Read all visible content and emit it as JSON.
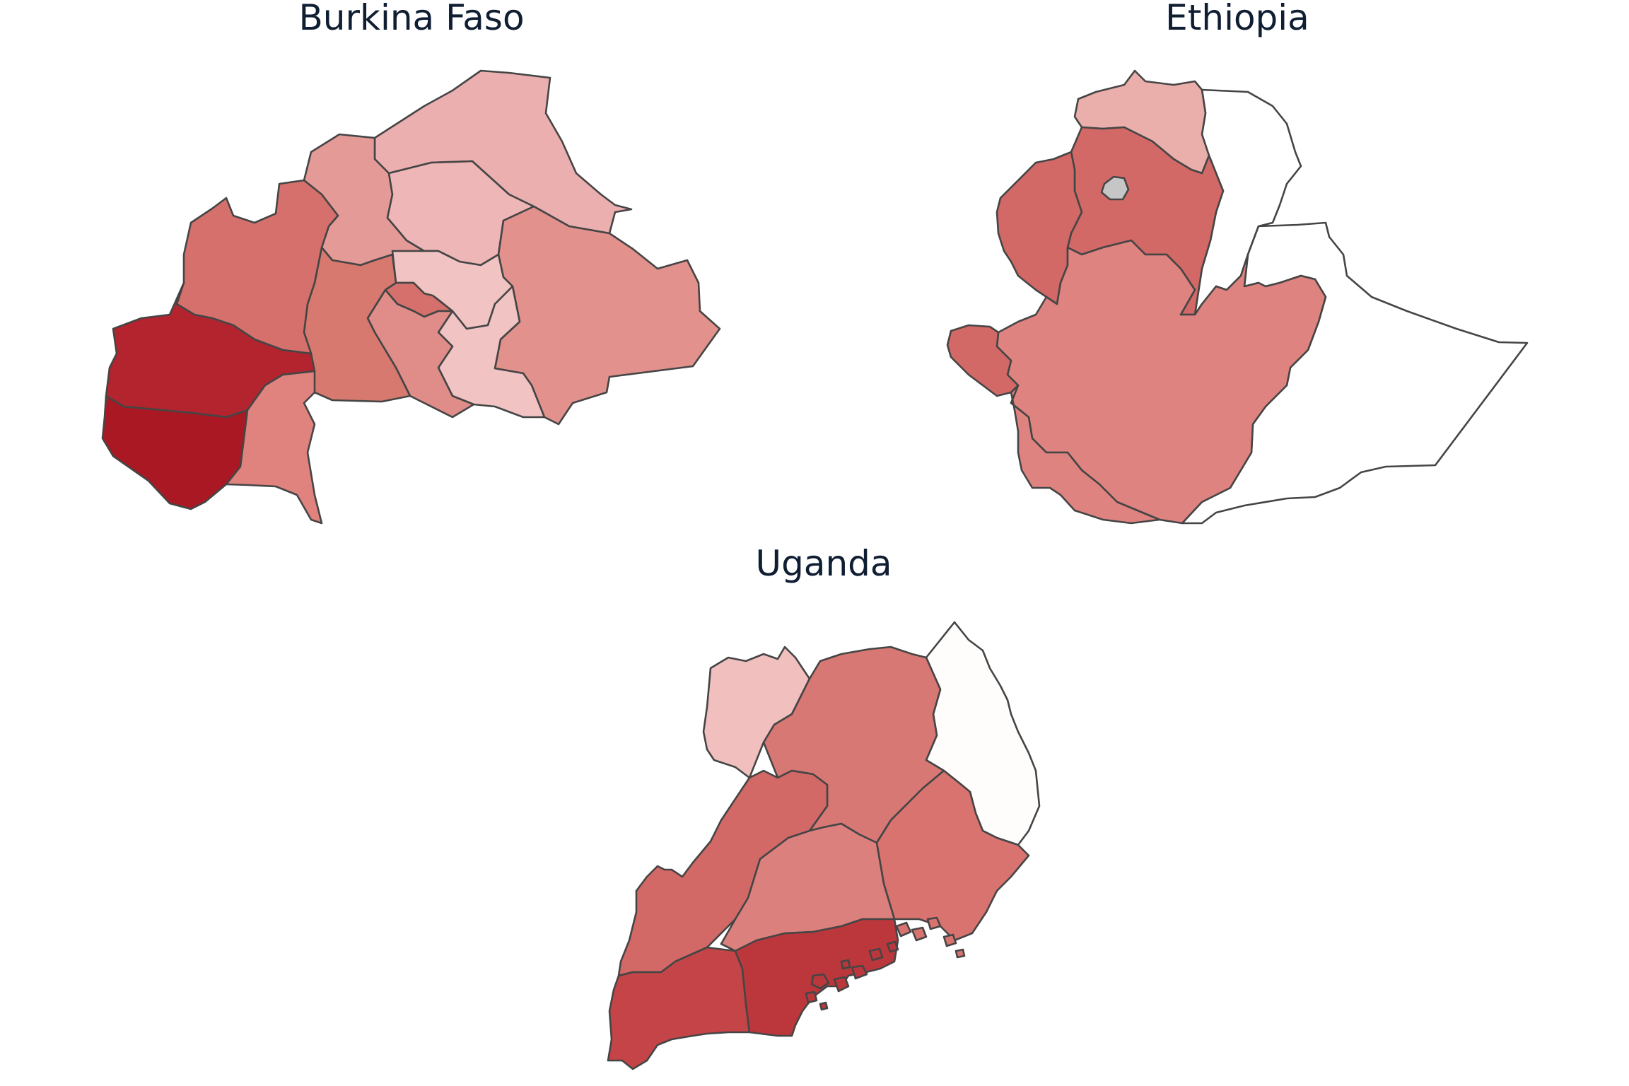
{
  "figure": {
    "maps": [
      {
        "id": "burkina-faso",
        "title": "Burkina Faso",
        "regions": [
          {
            "name": "burkina-north-east",
            "color": "#ebafaf"
          },
          {
            "name": "burkina-north-central",
            "color": "#eeb6b6"
          },
          {
            "name": "burkina-north-west",
            "color": "#e49b98"
          },
          {
            "name": "burkina-west-upper",
            "color": "#d5706c"
          },
          {
            "name": "burkina-centre",
            "color": "#f1c3c3"
          },
          {
            "name": "burkina-capital",
            "color": "#d5706c"
          },
          {
            "name": "burkina-centre-west",
            "color": "#d7796f"
          },
          {
            "name": "burkina-centre-south",
            "color": "#e08d8a"
          },
          {
            "name": "burkina-centre-east",
            "color": "#f1c3c3"
          },
          {
            "name": "burkina-east",
            "color": "#e2918d"
          },
          {
            "name": "burkina-hauts-bassins",
            "color": "#b3242f"
          },
          {
            "name": "burkina-cascades",
            "color": "#aa1823"
          },
          {
            "name": "burkina-south-west",
            "color": "#e0837f"
          }
        ]
      },
      {
        "id": "ethiopia",
        "title": "Ethiopia",
        "regions": [
          {
            "name": "ethiopia-tigray",
            "color": "#ebafab"
          },
          {
            "name": "ethiopia-amhara",
            "color": "#d26967"
          },
          {
            "name": "ethiopia-no-data-enclave",
            "color": "#c6c6c6"
          },
          {
            "name": "ethiopia-benishangul",
            "color": "#d26967"
          },
          {
            "name": "ethiopia-oromia",
            "color": "#df8380"
          },
          {
            "name": "ethiopia-gambela",
            "color": "#d26967"
          },
          {
            "name": "ethiopia-snnp",
            "color": "#df8380"
          },
          {
            "name": "ethiopia-afar",
            "color": "#ffffff"
          },
          {
            "name": "ethiopia-somali",
            "color": "#ffffff"
          }
        ]
      },
      {
        "id": "uganda",
        "title": "Uganda",
        "regions": [
          {
            "name": "uganda-west-nile",
            "color": "#f0bfbe"
          },
          {
            "name": "uganda-northern",
            "color": "#d87875"
          },
          {
            "name": "uganda-karamoja",
            "color": "#fffcfc"
          },
          {
            "name": "uganda-eastern",
            "color": "#d87370"
          },
          {
            "name": "uganda-western",
            "color": "#d26967"
          },
          {
            "name": "uganda-central-north",
            "color": "#dc807d"
          },
          {
            "name": "uganda-south-western",
            "color": "#c44447"
          },
          {
            "name": "uganda-central-south",
            "color": "#bc373c"
          }
        ]
      }
    ]
  }
}
